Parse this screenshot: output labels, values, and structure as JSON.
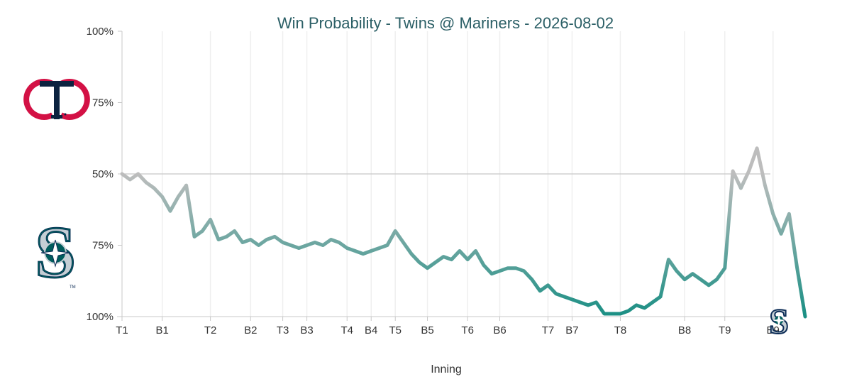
{
  "chart_data": {
    "type": "line",
    "title": "Win Probability - Twins @ Mariners - 2026-08-02",
    "xlabel": "Inning",
    "ylabel": "",
    "y_tick_labels": [
      "100%",
      "75%",
      "50%",
      "75%",
      "100%"
    ],
    "ylim": [
      0,
      1
    ],
    "x_ticks": [
      {
        "label": "T1",
        "x": 0
      },
      {
        "label": "B1",
        "x": 5
      },
      {
        "label": "T2",
        "x": 11
      },
      {
        "label": "B2",
        "x": 16
      },
      {
        "label": "T3",
        "x": 20
      },
      {
        "label": "B3",
        "x": 23
      },
      {
        "label": "T4",
        "x": 28
      },
      {
        "label": "B4",
        "x": 31
      },
      {
        "label": "T5",
        "x": 34
      },
      {
        "label": "B5",
        "x": 38
      },
      {
        "label": "T6",
        "x": 43
      },
      {
        "label": "B6",
        "x": 47
      },
      {
        "label": "T7",
        "x": 53
      },
      {
        "label": "B7",
        "x": 56
      },
      {
        "label": "T8",
        "x": 62
      },
      {
        "label": "B8",
        "x": 70
      },
      {
        "label": "T9",
        "x": 75
      },
      {
        "label": "B9",
        "x": 81
      }
    ],
    "series": [
      {
        "name": "",
        "description_of_values": "Mariners win probability (0 to 1)",
        "values": [
          0.5,
          0.52,
          0.5,
          0.53,
          0.55,
          0.58,
          0.63,
          0.58,
          0.54,
          0.72,
          0.7,
          0.66,
          0.73,
          0.72,
          0.7,
          0.74,
          0.73,
          0.75,
          0.73,
          0.72,
          0.74,
          0.75,
          0.76,
          0.75,
          0.74,
          0.75,
          0.73,
          0.74,
          0.76,
          0.77,
          0.78,
          0.77,
          0.76,
          0.75,
          0.7,
          0.74,
          0.78,
          0.81,
          0.83,
          0.81,
          0.79,
          0.8,
          0.77,
          0.8,
          0.77,
          0.82,
          0.85,
          0.84,
          0.83,
          0.83,
          0.84,
          0.87,
          0.91,
          0.89,
          0.92,
          0.93,
          0.94,
          0.95,
          0.96,
          0.95,
          0.99,
          0.99,
          0.99,
          0.98,
          0.96,
          0.97,
          0.95,
          0.93,
          0.8,
          0.84,
          0.87,
          0.85,
          0.87,
          0.89,
          0.87,
          0.83,
          0.49,
          0.55,
          0.49,
          0.41,
          0.54,
          0.64,
          0.71,
          0.64,
          0.83,
          1.0
        ]
      }
    ],
    "reference_line": 0.5,
    "colors": {
      "title": "#2b5f66",
      "line_mid": "#bdbdbd",
      "line_mariners": "#1a8f84",
      "twins_navy": "#0c2340",
      "twins_red": "#d31145",
      "mariners_navy": "#0c2c56",
      "mariners_teal": "#005c5c",
      "mariners_silver": "#c4ced4"
    },
    "logos": {
      "top": "twins-logo",
      "bottom": "mariners-logo",
      "end_marker": "mariners-logo-small"
    }
  }
}
